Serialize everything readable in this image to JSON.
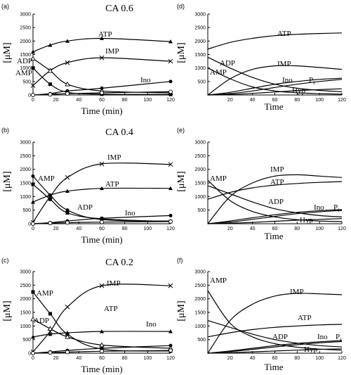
{
  "chart_data": [
    {
      "id": "a",
      "panel_label": "(a)",
      "title": "CA 0.6",
      "type": "line",
      "xlabel": "Time (min)",
      "ylabel": "[μM]",
      "xlim": [
        0,
        120
      ],
      "ylim": [
        0,
        3000
      ],
      "xticks": [
        0,
        20,
        40,
        60,
        80,
        100,
        120
      ],
      "yticks": [
        0,
        500,
        1000,
        1500,
        2000,
        2500,
        3000
      ],
      "series": [
        {
          "name": "ATP",
          "marker": "triangle",
          "x": [
            0,
            15,
            30,
            60,
            120
          ],
          "y": [
            1600,
            1850,
            2000,
            2100,
            1980
          ]
        },
        {
          "name": "IMP",
          "marker": "cross",
          "x": [
            0,
            15,
            30,
            60,
            120
          ],
          "y": [
            350,
            900,
            1200,
            1380,
            1250
          ]
        },
        {
          "name": "ADP",
          "marker": "triangle-open",
          "x": [
            0,
            15,
            30,
            60,
            120
          ],
          "y": [
            1350,
            900,
            400,
            150,
            80
          ]
        },
        {
          "name": "AMP",
          "marker": "square",
          "x": [
            0,
            15,
            30,
            60,
            120
          ],
          "y": [
            1000,
            400,
            100,
            30,
            20
          ]
        },
        {
          "name": "Ino",
          "marker": "dot",
          "x": [
            0,
            15,
            30,
            60,
            120
          ],
          "y": [
            0,
            50,
            150,
            250,
            500
          ]
        },
        {
          "name": "",
          "marker": "circle-open",
          "x": [
            0,
            15,
            30,
            60,
            120
          ],
          "y": [
            0,
            20,
            50,
            80,
            120
          ]
        }
      ]
    },
    {
      "id": "d",
      "panel_label": "(d)",
      "title": "",
      "type": "line",
      "xlabel": "Time",
      "ylabel": "[μM]",
      "xlim": [
        0,
        120
      ],
      "ylim": [
        0,
        3000
      ],
      "xticks": [
        20,
        40,
        60,
        80,
        100,
        120
      ],
      "yticks": [
        500,
        1000,
        1500,
        2000,
        2500,
        3000
      ],
      "series": [
        {
          "name": "ATP",
          "x": [
            0,
            20,
            40,
            60,
            80,
            100,
            120
          ],
          "y": [
            1700,
            1950,
            2100,
            2200,
            2250,
            2280,
            2300
          ]
        },
        {
          "name": "IMP",
          "x": [
            0,
            20,
            40,
            60,
            80,
            100,
            120
          ],
          "y": [
            0,
            600,
            950,
            1080,
            1080,
            1020,
            950
          ]
        },
        {
          "name": "ADP",
          "x": [
            0,
            20,
            40,
            60,
            80,
            100,
            120
          ],
          "y": [
            1400,
            1000,
            650,
            400,
            250,
            170,
            120
          ]
        },
        {
          "name": "AMP",
          "x": [
            0,
            20,
            40,
            60,
            80,
            100,
            120
          ],
          "y": [
            1000,
            600,
            300,
            150,
            80,
            50,
            30
          ]
        },
        {
          "name": "Ino",
          "x": [
            0,
            20,
            40,
            60,
            80,
            100,
            120
          ],
          "y": [
            0,
            100,
            250,
            400,
            500,
            580,
            620
          ]
        },
        {
          "name": "P",
          "subscript": "i",
          "x": [
            0,
            20,
            40,
            60,
            80,
            100,
            120
          ],
          "y": [
            0,
            50,
            150,
            280,
            400,
            500,
            580
          ]
        },
        {
          "name": "Hyp",
          "x": [
            0,
            20,
            40,
            60,
            80,
            100,
            120
          ],
          "y": [
            0,
            20,
            60,
            110,
            160,
            200,
            230
          ]
        }
      ]
    },
    {
      "id": "b",
      "panel_label": "(b)",
      "title": "CA 0.4",
      "type": "line",
      "xlabel": "Time (min)",
      "ylabel": "[μM]",
      "xlim": [
        0,
        120
      ],
      "ylim": [
        0,
        3000
      ],
      "xticks": [
        0,
        20,
        40,
        60,
        80,
        100,
        120
      ],
      "yticks": [
        0,
        500,
        1000,
        1500,
        2000,
        2500,
        3000
      ],
      "series": [
        {
          "name": "IMP",
          "marker": "cross",
          "x": [
            0,
            15,
            30,
            60,
            120
          ],
          "y": [
            50,
            1000,
            1700,
            2200,
            2180
          ]
        },
        {
          "name": "ATP",
          "marker": "triangle",
          "x": [
            0,
            15,
            30,
            60,
            120
          ],
          "y": [
            800,
            1050,
            1200,
            1300,
            1300
          ]
        },
        {
          "name": "AMP",
          "marker": "dot",
          "x": [
            0,
            15,
            30,
            60,
            120
          ],
          "y": [
            1750,
            1050,
            500,
            150,
            100
          ]
        },
        {
          "name": "ADP",
          "marker": "square",
          "x": [
            0,
            15,
            30,
            60,
            120
          ],
          "y": [
            1450,
            900,
            400,
            180,
            80
          ]
        },
        {
          "name": "Ino",
          "marker": "dot",
          "x": [
            0,
            15,
            30,
            60,
            120
          ],
          "y": [
            0,
            40,
            100,
            200,
            300
          ]
        },
        {
          "name": "",
          "marker": "circle-open",
          "x": [
            0,
            15,
            30,
            60,
            120
          ],
          "y": [
            0,
            20,
            40,
            60,
            80
          ]
        }
      ]
    },
    {
      "id": "e",
      "panel_label": "(e)",
      "title": "",
      "type": "line",
      "xlabel": "Time",
      "ylabel": "[μM]",
      "xlim": [
        0,
        120
      ],
      "ylim": [
        0,
        3000
      ],
      "xticks": [
        20,
        40,
        60,
        80,
        100,
        120
      ],
      "yticks": [
        500,
        1000,
        1500,
        2000,
        2500,
        3000
      ],
      "series": [
        {
          "name": "IMP",
          "x": [
            0,
            20,
            40,
            60,
            80,
            100,
            120
          ],
          "y": [
            0,
            1000,
            1500,
            1750,
            1800,
            1750,
            1700
          ]
        },
        {
          "name": "ATP",
          "x": [
            0,
            20,
            40,
            60,
            80,
            100,
            120
          ],
          "y": [
            900,
            1150,
            1320,
            1420,
            1480,
            1520,
            1550
          ]
        },
        {
          "name": "AMP",
          "x": [
            0,
            20,
            40,
            60,
            80,
            100,
            120
          ],
          "y": [
            1600,
            850,
            450,
            250,
            150,
            100,
            80
          ]
        },
        {
          "name": "ADP",
          "x": [
            0,
            20,
            40,
            60,
            80,
            100,
            120
          ],
          "y": [
            1400,
            1100,
            800,
            550,
            400,
            300,
            250
          ]
        },
        {
          "name": "Ino",
          "x": [
            0,
            20,
            40,
            60,
            80,
            100,
            120
          ],
          "y": [
            0,
            100,
            220,
            330,
            420,
            480,
            520
          ]
        },
        {
          "name": "P",
          "subscript": "i",
          "x": [
            0,
            20,
            40,
            60,
            80,
            100,
            120
          ],
          "y": [
            0,
            60,
            160,
            270,
            370,
            440,
            490
          ]
        },
        {
          "name": "Hyp",
          "x": [
            0,
            20,
            40,
            60,
            80,
            100,
            120
          ],
          "y": [
            0,
            20,
            50,
            90,
            130,
            160,
            190
          ]
        }
      ]
    },
    {
      "id": "c",
      "panel_label": "(c)",
      "title": "CA 0.2",
      "type": "line",
      "xlabel": "Time (min)",
      "ylabel": "[μM]",
      "xlim": [
        0,
        120
      ],
      "ylim": [
        0,
        3000
      ],
      "xticks": [
        0,
        20,
        40,
        60,
        80,
        100,
        120
      ],
      "yticks": [
        0,
        500,
        1000,
        1500,
        2000,
        2500,
        3000
      ],
      "series": [
        {
          "name": "IMP",
          "marker": "cross",
          "x": [
            0,
            15,
            30,
            60,
            120
          ],
          "y": [
            50,
            800,
            1700,
            2480,
            2480
          ]
        },
        {
          "name": "AMP",
          "marker": "square",
          "x": [
            0,
            15,
            30,
            60,
            120
          ],
          "y": [
            2250,
            1450,
            700,
            150,
            80
          ]
        },
        {
          "name": "ADP",
          "marker": "triangle-open",
          "x": [
            0,
            15,
            30,
            60,
            120
          ],
          "y": [
            1250,
            900,
            600,
            300,
            180
          ]
        },
        {
          "name": "ATP",
          "marker": "triangle",
          "x": [
            0,
            15,
            30,
            60,
            120
          ],
          "y": [
            600,
            700,
            750,
            800,
            800
          ]
        },
        {
          "name": "Ino",
          "marker": "dot",
          "x": [
            0,
            15,
            30,
            60,
            120
          ],
          "y": [
            0,
            50,
            100,
            180,
            280
          ]
        },
        {
          "name": "",
          "marker": "circle-open",
          "x": [
            0,
            15,
            30,
            60,
            120
          ],
          "y": [
            0,
            20,
            40,
            70,
            100
          ]
        }
      ]
    },
    {
      "id": "f",
      "panel_label": "(f)",
      "title": "",
      "type": "line",
      "xlabel": "Time",
      "ylabel": "[μM]",
      "xlim": [
        0,
        120
      ],
      "ylim": [
        0,
        3000
      ],
      "xticks": [
        20,
        40,
        60,
        80,
        100,
        120
      ],
      "yticks": [
        500,
        1000,
        1500,
        2000,
        2500,
        3000
      ],
      "series": [
        {
          "name": "IMP",
          "x": [
            0,
            20,
            40,
            60,
            80,
            100,
            120
          ],
          "y": [
            0,
            1200,
            1800,
            2100,
            2200,
            2180,
            2150
          ]
        },
        {
          "name": "ATP",
          "x": [
            0,
            20,
            40,
            60,
            80,
            100,
            120
          ],
          "y": [
            600,
            750,
            870,
            950,
            1000,
            1040,
            1060
          ]
        },
        {
          "name": "AMP",
          "x": [
            0,
            20,
            40,
            60,
            80,
            100,
            120
          ],
          "y": [
            2300,
            1100,
            600,
            350,
            220,
            150,
            110
          ]
        },
        {
          "name": "ADP",
          "x": [
            0,
            20,
            40,
            60,
            80,
            100,
            120
          ],
          "y": [
            1200,
            950,
            700,
            500,
            370,
            280,
            230
          ]
        },
        {
          "name": "Ino",
          "x": [
            0,
            20,
            40,
            60,
            80,
            100,
            120
          ],
          "y": [
            0,
            80,
            180,
            280,
            360,
            420,
            470
          ]
        },
        {
          "name": "P",
          "subscript": "i",
          "x": [
            0,
            20,
            40,
            60,
            80,
            100,
            120
          ],
          "y": [
            0,
            60,
            140,
            230,
            310,
            380,
            430
          ]
        },
        {
          "name": "Hyp",
          "x": [
            0,
            20,
            40,
            60,
            80,
            100,
            120
          ],
          "y": [
            0,
            20,
            50,
            80,
            110,
            140,
            160
          ]
        }
      ]
    }
  ]
}
